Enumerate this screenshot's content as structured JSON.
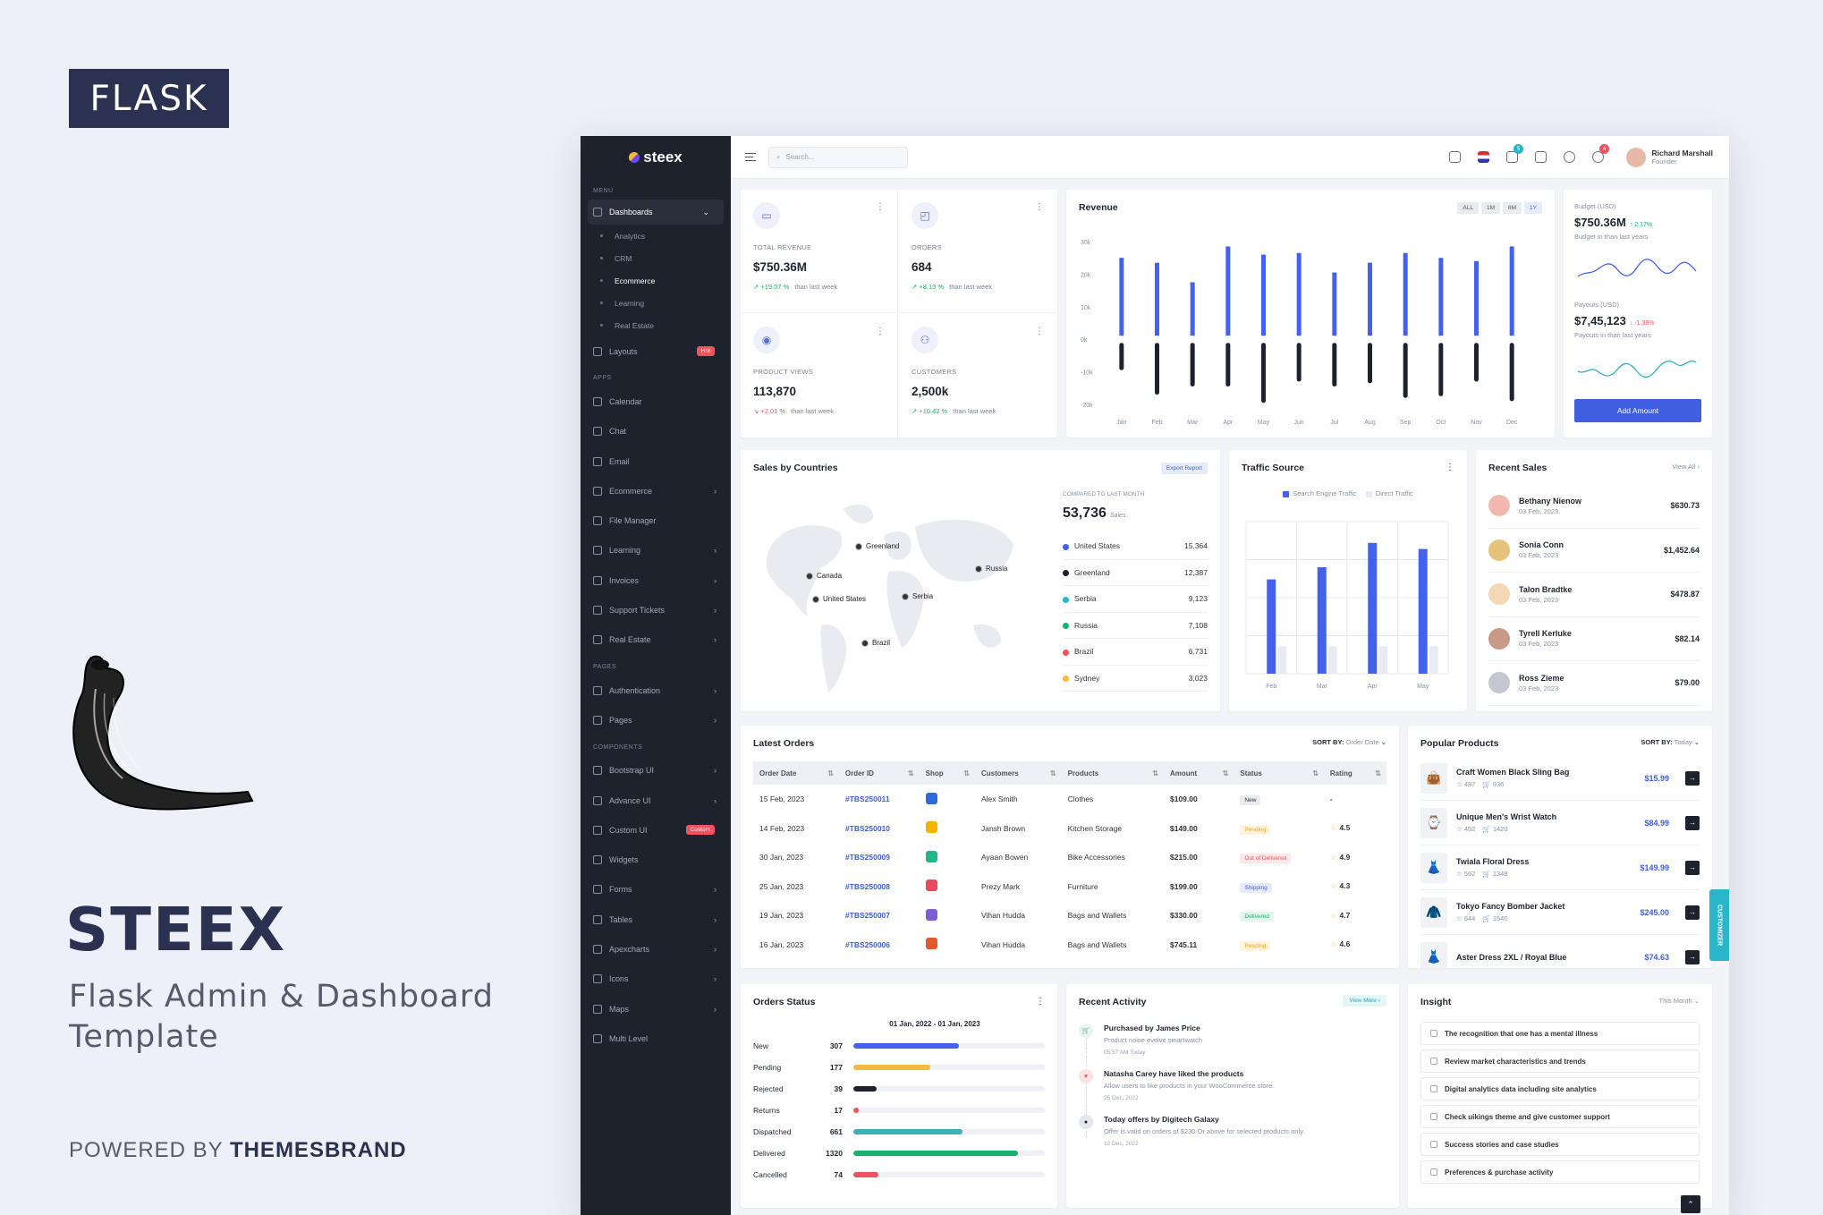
{
  "promo": {
    "badge": "FLASK",
    "title": "STEEX",
    "subtitle": "Flask Admin & Dashboard Template",
    "powered_prefix": "POWERED BY",
    "powered_brand": "THEMESBRAND"
  },
  "app": {
    "logo": "steex",
    "search_placeholder": "Search...",
    "cart_badge": "5",
    "notif_badge": "4",
    "user_name": "Richard Marshall",
    "user_role": "Founder",
    "customizer": "CUSTOMIZER"
  },
  "sidebar": {
    "menu_label": "MENU",
    "dashboards": "Dashboards",
    "dash_sub": [
      "Analytics",
      "CRM",
      "Ecommerce",
      "Learning",
      "Real Estate"
    ],
    "layouts": "Layouts",
    "layouts_badge": "Hot",
    "apps_label": "APPS",
    "apps": [
      "Calendar",
      "Chat",
      "Email",
      "Ecommerce",
      "File Manager",
      "Learning",
      "Invoices",
      "Support Tickets",
      "Real Estate"
    ],
    "pages_label": "PAGES",
    "pages": [
      "Authentication",
      "Pages"
    ],
    "components_label": "COMPONENTS",
    "components": [
      "Bootstrap UI",
      "Advance UI",
      "Custom UI",
      "Widgets",
      "Forms",
      "Tables",
      "Apexcharts",
      "Icons",
      "Maps",
      "Multi Level"
    ],
    "custom_badge": "Custom"
  },
  "stats": [
    {
      "label": "TOTAL REVENUE",
      "value": "$750.36M",
      "change": "+19.07 %",
      "trend": "up",
      "note": "than last week"
    },
    {
      "label": "ORDERS",
      "value": "684",
      "change": "+8.13 %",
      "trend": "up",
      "note": "than last week"
    },
    {
      "label": "PRODUCT VIEWS",
      "value": "113,870",
      "change": "+2.01 %",
      "trend": "down",
      "note": "than last week"
    },
    {
      "label": "CUSTOMERS",
      "value": "2,500k",
      "change": "+10.42 %",
      "trend": "up",
      "note": "than last week"
    }
  ],
  "revenue": {
    "title": "Revenue",
    "ranges": [
      "ALL",
      "1M",
      "6M",
      "1Y"
    ],
    "active_range": "1Y"
  },
  "chart_data": [
    {
      "type": "bar",
      "title": "Revenue",
      "categories": [
        "Jan",
        "Feb",
        "Mar",
        "Apr",
        "May",
        "Jun",
        "Jul",
        "Aug",
        "Sep",
        "Oct",
        "Nov",
        "Dec"
      ],
      "y_ticks": [
        "30k",
        "20k",
        "10k",
        "0k",
        "-10k",
        "-20k"
      ],
      "ylim": [
        -20,
        30
      ],
      "series": [
        {
          "values": [
            25,
            23.5,
            17.5,
            28.5,
            26,
            26.5,
            20.5,
            23.5,
            26.5,
            25,
            24,
            28.5
          ],
          "color": "#4361ee"
        },
        {
          "values": [
            -9.5,
            -17,
            -14.5,
            -14.5,
            -19.5,
            -13,
            -14.5,
            -13.5,
            -18,
            -17.5,
            -13,
            -19
          ],
          "color": "#1e222c"
        }
      ]
    },
    {
      "type": "bar",
      "title": "Traffic Source",
      "categories": [
        "Feb",
        "Mar",
        "Apr",
        "May"
      ],
      "series": [
        {
          "name": "Search Engine Traffic",
          "values": [
            62,
            70,
            86,
            82
          ],
          "color": "#4361ee"
        },
        {
          "name": "Direct Traffic",
          "values": [
            18,
            18,
            18,
            18
          ],
          "color": "#e8ebf3"
        }
      ]
    },
    {
      "type": "bar",
      "title": "Orders Status",
      "categories": [
        "New",
        "Pending",
        "Rejected",
        "Returns",
        "Dispatched",
        "Delivered",
        "Cancelled"
      ],
      "values": [
        307,
        177,
        39,
        17,
        661,
        1320,
        74
      ]
    }
  ],
  "budget": {
    "label": "Budget (USD)",
    "value": "$750.36M",
    "change": "2.17%",
    "note": "Budget in than last years",
    "payout_label": "Payouts (USD)",
    "payout_value": "$7,45,123",
    "payout_change": "-1.36%",
    "payout_note": "Payouts in than last years",
    "button": "Add Amount"
  },
  "countries": {
    "title": "Sales by Countries",
    "export": "Export Report",
    "compare": "COMPARED TO LAST MONTH",
    "total": "53,736",
    "total_unit": "Sales",
    "map_labels": [
      "Greenland",
      "Canada",
      "United States",
      "Serbia",
      "Russia",
      "Brazil"
    ],
    "rows": [
      {
        "name": "United States",
        "value": "15,364",
        "color": "#4361ee"
      },
      {
        "name": "Greenland",
        "value": "12,387",
        "color": "#1e222c"
      },
      {
        "name": "Serbia",
        "value": "9,123",
        "color": "#29b6c8"
      },
      {
        "name": "Russia",
        "value": "7,108",
        "color": "#18b36b"
      },
      {
        "name": "Brazil",
        "value": "6,731",
        "color": "#f0535d"
      },
      {
        "name": "Sydney",
        "value": "3,023",
        "color": "#f5b93b"
      }
    ]
  },
  "traffic": {
    "title": "Traffic Source"
  },
  "recent_sales": {
    "title": "Recent Sales",
    "view_all": "View All",
    "rows": [
      {
        "name": "Bethany Nienow",
        "date": "03 Feb, 2023",
        "amount": "$630.73",
        "color": "#f2b8b0"
      },
      {
        "name": "Sonia Conn",
        "date": "03 Feb, 2023",
        "amount": "$1,452.64",
        "color": "#e7c27a"
      },
      {
        "name": "Talon Bradtke",
        "date": "03 Feb, 2023",
        "amount": "$478.87",
        "color": "#f4d7b5"
      },
      {
        "name": "Tyrell Kerluke",
        "date": "03 Feb, 2023",
        "amount": "$82.14",
        "color": "#c99b86"
      },
      {
        "name": "Ross Zieme",
        "date": "03 Feb, 2023",
        "amount": "$79.00",
        "color": "#c4c7d0"
      }
    ]
  },
  "orders": {
    "title": "Latest Orders",
    "sort_label": "SORT BY:",
    "sort_value": "Order Date",
    "columns": [
      "Order Date",
      "Order ID",
      "Shop",
      "Customers",
      "Products",
      "Amount",
      "Status",
      "Rating"
    ],
    "rows": [
      {
        "date": "15 Feb, 2023",
        "id": "#TBS250011",
        "shop": "#2f6bd8",
        "customer": "Alex Smith",
        "product": "Clothes",
        "amount": "$109.00",
        "status": "New",
        "rating": "-"
      },
      {
        "date": "14 Feb, 2023",
        "id": "#TBS250010",
        "shop": "#f4b400",
        "customer": "Jansh Brown",
        "product": "Kitchen Storage",
        "amount": "$149.00",
        "status": "Pending",
        "rating": "4.5"
      },
      {
        "date": "30 Jan, 2023",
        "id": "#TBS250009",
        "shop": "#25b58a",
        "customer": "Ayaan Bowen",
        "product": "Bike Accessories",
        "amount": "$215.00",
        "status": "Out of Delivered",
        "rating": "4.9"
      },
      {
        "date": "25 Jan, 2023",
        "id": "#TBS250008",
        "shop": "#e84a5f",
        "customer": "Prezy Mark",
        "product": "Furniture",
        "amount": "$199.00",
        "status": "Shipping",
        "rating": "4.3"
      },
      {
        "date": "19 Jan, 2023",
        "id": "#TBS250007",
        "shop": "#7d5cd6",
        "customer": "Vihan Hudda",
        "product": "Bags and Wallets",
        "amount": "$330.00",
        "status": "Delivered",
        "rating": "4.7"
      },
      {
        "date": "16 Jan, 2023",
        "id": "#TBS250006",
        "shop": "#e05a2b",
        "customer": "Vihan Hudda",
        "product": "Bags and Wallets",
        "amount": "$745.11",
        "status": "Pending",
        "rating": "4.6"
      }
    ]
  },
  "products": {
    "title": "Popular Products",
    "sort_label": "SORT BY:",
    "sort_value": "Today",
    "rows": [
      {
        "name": "Craft Women Black Sling Bag",
        "stars": "487",
        "cart": "936",
        "price": "$15.99"
      },
      {
        "name": "Unique Men's Wrist Watch",
        "stars": "452",
        "cart": "1420",
        "price": "$84.99"
      },
      {
        "name": "Twiala Floral Dress",
        "stars": "562",
        "cart": "1348",
        "price": "$149.99"
      },
      {
        "name": "Tokyo Fancy Bomber Jacket",
        "stars": "644",
        "cart": "1540",
        "price": "$245.00"
      },
      {
        "name": "Aster Dress 2XL / Royal Blue",
        "stars": "",
        "cart": "",
        "price": "$74.63"
      }
    ]
  },
  "orders_status": {
    "title": "Orders Status",
    "range": "01 Jan, 2022 - 01 Jan, 2023",
    "rows": [
      {
        "label": "New",
        "value": "307",
        "pct": 55,
        "color": "#4361ee"
      },
      {
        "label": "Pending",
        "value": "177",
        "pct": 40,
        "color": "#f5b93b"
      },
      {
        "label": "Rejected",
        "value": "39",
        "pct": 12,
        "color": "#1e222c"
      },
      {
        "label": "Returns",
        "value": "17",
        "pct": 3,
        "color": "#f0535d"
      },
      {
        "label": "Dispatched",
        "value": "661",
        "pct": 57,
        "color": "#3aafbf"
      },
      {
        "label": "Delivered",
        "value": "1320",
        "pct": 86,
        "color": "#18b36b"
      },
      {
        "label": "Cancelled",
        "value": "74",
        "pct": 13,
        "color": "#f0535d"
      }
    ]
  },
  "activity": {
    "title": "Recent Activity",
    "view_more": "View More",
    "rows": [
      {
        "title": "Purchased by James Price",
        "desc": "Product noise evolve smartwatch",
        "time": "05:57 AM Today",
        "bg": "#e4f7ed",
        "fg": "#18b36b"
      },
      {
        "title": "Natasha Carey have liked the products",
        "desc": "Allow users to like products in your WooCommerce store.",
        "time": "25 Dec, 2022",
        "bg": "#fbe3e3",
        "fg": "#f0535d"
      },
      {
        "title": "Today offers by Digitech Galaxy",
        "desc": "Offer is valid on orders of $230 Or above for selected products only.",
        "time": "12 Dec, 2022",
        "bg": "#e4e6ec",
        "fg": "#1e222c"
      }
    ]
  },
  "insight": {
    "title": "Insight",
    "period": "This Month",
    "rows": [
      "The recognition that one has a mental illness",
      "Review market characteristics and trends",
      "Digital analytics data including site analytics",
      "Check uikings theme and give customer support",
      "Success stories and case studies",
      "Preferences & purchase activity"
    ]
  }
}
